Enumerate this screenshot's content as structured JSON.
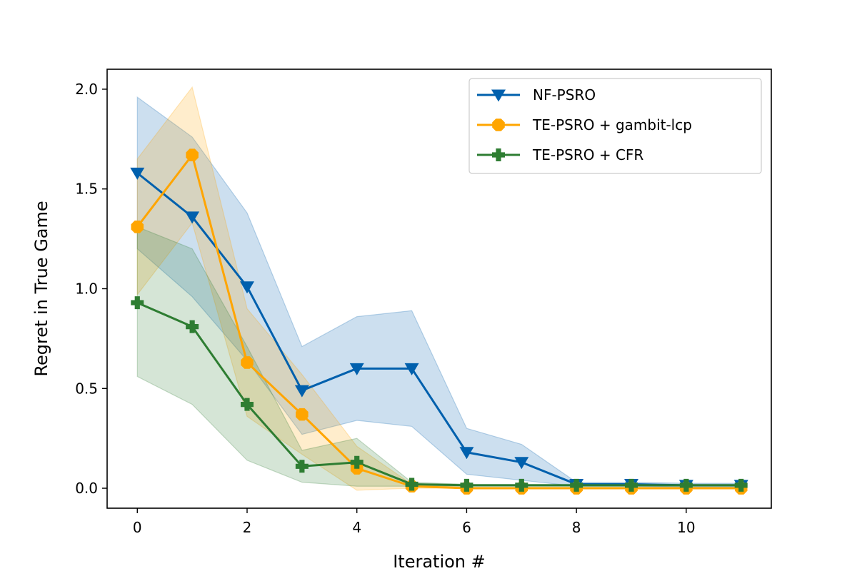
{
  "chart_data": {
    "type": "line",
    "title": "",
    "xlabel": "Iteration #",
    "ylabel": "Regret in True Game",
    "xlim": [
      -0.55,
      11.55
    ],
    "ylim": [
      -0.1,
      2.1
    ],
    "xticks": [
      0,
      2,
      4,
      6,
      8,
      10
    ],
    "xtick_labels": [
      "0",
      "2",
      "4",
      "6",
      "8",
      "10"
    ],
    "yticks": [
      0.0,
      0.5,
      1.0,
      1.5,
      2.0
    ],
    "ytick_labels": [
      "0.0",
      "0.5",
      "1.0",
      "1.5",
      "2.0"
    ],
    "grid": false,
    "legend_position": "top-right",
    "x": [
      0,
      1,
      2,
      3,
      4,
      5,
      6,
      7,
      8,
      9,
      10,
      11
    ],
    "series": [
      {
        "name": "NF-PSRO",
        "color": "#0060ad",
        "marker": "triangle-down",
        "values": [
          1.58,
          1.36,
          1.01,
          0.49,
          0.6,
          0.6,
          0.18,
          0.13,
          0.02,
          0.02,
          0.015,
          0.015
        ],
        "upper": [
          1.96,
          1.76,
          1.38,
          0.71,
          0.86,
          0.89,
          0.3,
          0.22,
          0.03,
          0.03,
          0.025,
          0.025
        ],
        "lower": [
          1.2,
          0.96,
          0.64,
          0.27,
          0.34,
          0.31,
          0.07,
          0.04,
          0.01,
          0.01,
          0.005,
          0.005
        ]
      },
      {
        "name": "TE-PSRO + gambit-lcp",
        "color": "#ffa500",
        "marker": "octagon",
        "values": [
          1.31,
          1.67,
          0.63,
          0.37,
          0.1,
          0.01,
          0.0,
          0.0,
          0.0,
          0.0,
          0.0,
          0.0
        ],
        "upper": [
          1.65,
          2.01,
          0.9,
          0.57,
          0.21,
          0.02,
          0.005,
          0.005,
          0.005,
          0.005,
          0.005,
          0.005
        ],
        "lower": [
          0.97,
          1.33,
          0.36,
          0.17,
          -0.01,
          0.0,
          0.0,
          0.0,
          0.0,
          0.0,
          0.0,
          0.0
        ]
      },
      {
        "name": "TE-PSRO + CFR",
        "color": "#2e7d32",
        "marker": "plus-filled",
        "values": [
          0.93,
          0.81,
          0.42,
          0.11,
          0.13,
          0.02,
          0.015,
          0.015,
          0.015,
          0.015,
          0.015,
          0.015
        ],
        "upper": [
          1.31,
          1.2,
          0.71,
          0.19,
          0.25,
          0.03,
          0.02,
          0.02,
          0.02,
          0.02,
          0.02,
          0.02
        ],
        "lower": [
          0.56,
          0.42,
          0.14,
          0.03,
          0.01,
          0.01,
          0.01,
          0.01,
          0.01,
          0.01,
          0.01,
          0.01
        ]
      }
    ]
  }
}
